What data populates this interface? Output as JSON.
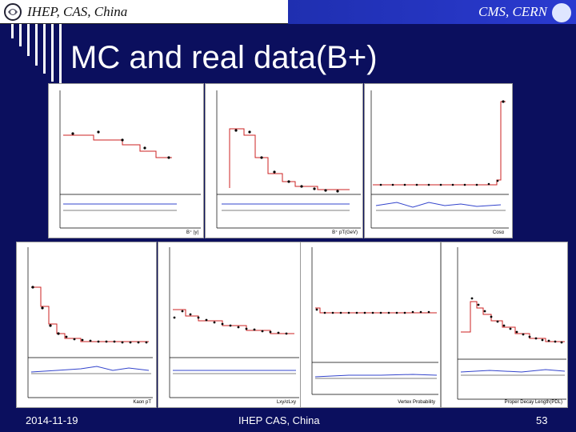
{
  "header": {
    "left_text": "IHEP, CAS, China",
    "right_text": "CMS, CERN"
  },
  "slide": {
    "title": "MC and real data(B+)"
  },
  "plots": [
    {
      "xlabel": "B⁺ |y|"
    },
    {
      "xlabel": "B⁺ pT(GeV)"
    },
    {
      "xlabel": "Cosα"
    },
    {
      "xlabel": "Kaon pT"
    },
    {
      "xlabel": "Lxy/σLxy"
    },
    {
      "xlabel": "Vertex Probability"
    },
    {
      "xlabel": "Proper Decay Length(PDL)"
    }
  ],
  "footer": {
    "date": "2014-11-19",
    "center": "IHEP CAS, China",
    "page": "53"
  },
  "colors": {
    "background": "#0b0f5e",
    "mc_line": "#cc2222",
    "ratio_line": "#3344cc"
  }
}
